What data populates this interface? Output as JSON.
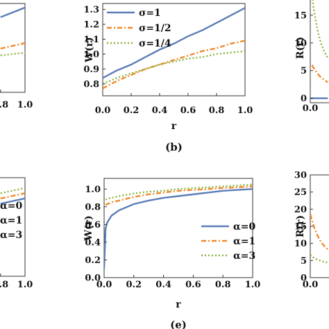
{
  "chart_data": [
    {
      "panel": "a",
      "type": "line",
      "xlabel": "",
      "ylabel": "",
      "xlim": [
        0,
        1.0
      ],
      "x_ticks": [
        "0.8",
        "1.0"
      ],
      "x": [
        0.0,
        0.2,
        0.4,
        0.6,
        0.8,
        1.0
      ],
      "series": [
        {
          "color": "#5b7db6",
          "dash": "solid",
          "values": [
            null,
            null,
            null,
            null,
            1.25,
            1.32
          ]
        },
        {
          "color": "#f0892a",
          "dash": "dashdot",
          "values": [
            null,
            null,
            null,
            null,
            1.02,
            1.06
          ]
        },
        {
          "color": "#8ab33a",
          "dash": "dot",
          "values": [
            null,
            null,
            null,
            null,
            0.97,
            0.99
          ]
        }
      ]
    },
    {
      "panel": "b",
      "type": "line",
      "caption": "(b)",
      "xlabel": "r",
      "ylabel": "W(r)",
      "xlim": [
        0,
        1.0
      ],
      "ylim": [
        0.72,
        1.34
      ],
      "x_ticks": [
        "0.0",
        "0.2",
        "0.4",
        "0.6",
        "0.8",
        "1.0"
      ],
      "y_ticks": [
        "0.8",
        "0.9",
        "1.0",
        "1.1",
        "1.2",
        "1.3"
      ],
      "legend_position": "top-left",
      "x": [
        0.0,
        0.1,
        0.2,
        0.3,
        0.4,
        0.5,
        0.6,
        0.7,
        0.8,
        0.9,
        1.0
      ],
      "series": [
        {
          "name": "σ=1",
          "color": "#5b7db6",
          "dash": "solid",
          "values": [
            0.84,
            0.89,
            0.93,
            0.98,
            1.03,
            1.07,
            1.12,
            1.16,
            1.21,
            1.26,
            1.31
          ]
        },
        {
          "name": "σ=1/2",
          "color": "#f0892a",
          "dash": "dashdot",
          "values": [
            0.77,
            0.82,
            0.86,
            0.9,
            0.93,
            0.96,
            0.99,
            1.02,
            1.04,
            1.07,
            1.09
          ]
        },
        {
          "name": "σ=1/4",
          "color": "#8ab33a",
          "dash": "dot",
          "values": [
            0.8,
            0.84,
            0.87,
            0.9,
            0.93,
            0.95,
            0.97,
            0.98,
            1.0,
            1.01,
            1.02
          ]
        }
      ]
    },
    {
      "panel": "c",
      "type": "line",
      "ylabel": "R(r)",
      "xlim": [
        0,
        1.0
      ],
      "ylim": [
        -0.8,
        19
      ],
      "x_ticks": [
        "0.0"
      ],
      "y_ticks": [
        "0",
        "5",
        "10",
        "15"
      ],
      "x": [
        0.0,
        0.01,
        0.02,
        0.04,
        0.06,
        0.08,
        0.1
      ],
      "series": [
        {
          "color": "#5b7db6",
          "dash": "solid",
          "values": [
            0,
            0,
            0,
            0,
            0,
            0,
            0
          ]
        },
        {
          "color": "#f0892a",
          "dash": "dashdot",
          "values": [
            null,
            6.0,
            5.4,
            4.5,
            3.8,
            3.3,
            2.9
          ]
        },
        {
          "color": "#8ab33a",
          "dash": "dot",
          "values": [
            null,
            18.5,
            16.0,
            12.5,
            10.0,
            8.4,
            7.3
          ]
        }
      ]
    },
    {
      "panel": "d",
      "type": "line",
      "xlabel": "",
      "ylabel": "",
      "xlim": [
        0,
        1.0
      ],
      "x_ticks": [
        "0.8",
        "1.0"
      ],
      "legend_position": "bottom-left",
      "x": [
        0.0,
        0.2,
        0.4,
        0.6,
        0.8,
        1.0
      ],
      "series": [
        {
          "name": "α=0",
          "color": "#5b7db6",
          "dash": "solid",
          "values": [
            null,
            null,
            null,
            null,
            0.97,
            1.0
          ]
        },
        {
          "name": "α=1",
          "color": "#f0892a",
          "dash": "dashdot",
          "values": [
            null,
            null,
            null,
            null,
            1.0,
            1.03
          ]
        },
        {
          "name": "α=3",
          "color": "#8ab33a",
          "dash": "dot",
          "values": [
            null,
            null,
            null,
            null,
            1.03,
            1.06
          ]
        }
      ]
    },
    {
      "panel": "e",
      "type": "line",
      "caption": "(e)",
      "xlabel": "r",
      "ylabel": "W(r)",
      "xlim": [
        0,
        1.0
      ],
      "ylim": [
        0,
        1.12
      ],
      "x_ticks": [
        "0.0",
        "0.2",
        "0.4",
        "0.6",
        "0.8",
        "1.0"
      ],
      "y_ticks": [
        "0.0",
        "0.2",
        "0.4",
        "0.6",
        "0.8",
        "1.0"
      ],
      "legend_position": "bottom-right",
      "x": [
        0.0,
        0.01,
        0.02,
        0.05,
        0.1,
        0.2,
        0.3,
        0.4,
        0.5,
        0.6,
        0.7,
        0.8,
        0.9,
        1.0
      ],
      "series": [
        {
          "name": "α=0",
          "color": "#5b7db6",
          "dash": "solid",
          "values": [
            0.1,
            0.55,
            0.62,
            0.7,
            0.76,
            0.83,
            0.87,
            0.9,
            0.92,
            0.94,
            0.96,
            0.98,
            0.99,
            1.0
          ]
        },
        {
          "name": "α=1",
          "color": "#f0892a",
          "dash": "dashdot",
          "values": [
            null,
            0.82,
            0.83,
            0.85,
            0.87,
            0.91,
            0.94,
            0.96,
            0.98,
            0.99,
            1.0,
            1.01,
            1.02,
            1.03
          ]
        },
        {
          "name": "α=3",
          "color": "#8ab33a",
          "dash": "dot",
          "values": [
            null,
            0.88,
            0.89,
            0.9,
            0.92,
            0.95,
            0.97,
            0.98,
            1.0,
            1.01,
            1.02,
            1.03,
            1.04,
            1.05
          ]
        }
      ]
    },
    {
      "panel": "f",
      "type": "line",
      "ylabel": "R(r)",
      "xlim": [
        0,
        1.0
      ],
      "ylim": [
        0,
        30
      ],
      "x_ticks": [
        "0.0"
      ],
      "y_ticks": [
        "0",
        "5",
        "10",
        "15",
        "20",
        "25",
        "30"
      ],
      "x": [
        0.0,
        0.02,
        0.04,
        0.06,
        0.08,
        0.1,
        0.12
      ],
      "series": [
        {
          "color": "#f0892a",
          "dash": "dashdot",
          "values": [
            18.5,
            15.0,
            12.4,
            10.5,
            9.2,
            8.3,
            7.6
          ]
        },
        {
          "color": "#8ab33a",
          "dash": "dot",
          "values": [
            6.6,
            5.8,
            5.3,
            4.9,
            4.6,
            4.4,
            4.2
          ]
        }
      ]
    }
  ]
}
